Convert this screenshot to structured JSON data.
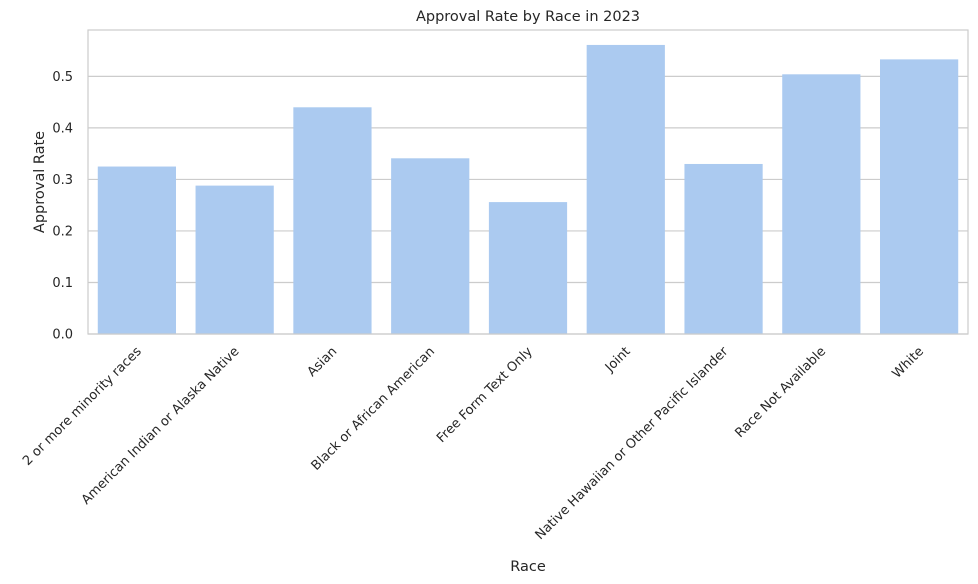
{
  "chart_data": {
    "type": "bar",
    "title": "Approval Rate by Race in 2023",
    "xlabel": "Race",
    "ylabel": "Approval Rate",
    "ylim": [
      0,
      0.59
    ],
    "yticks": [
      "0.0",
      "0.1",
      "0.2",
      "0.3",
      "0.4",
      "0.5"
    ],
    "grid": true,
    "bar_color": "#abcaf0",
    "categories": [
      "2 or more minority races",
      "American Indian or Alaska Native",
      "Asian",
      "Black or African American",
      "Free Form Text Only",
      "Joint",
      "Native Hawaiian or Other Pacific Islander",
      "Race Not Available",
      "White"
    ],
    "values": [
      0.325,
      0.288,
      0.44,
      0.341,
      0.256,
      0.561,
      0.33,
      0.504,
      0.533
    ]
  }
}
